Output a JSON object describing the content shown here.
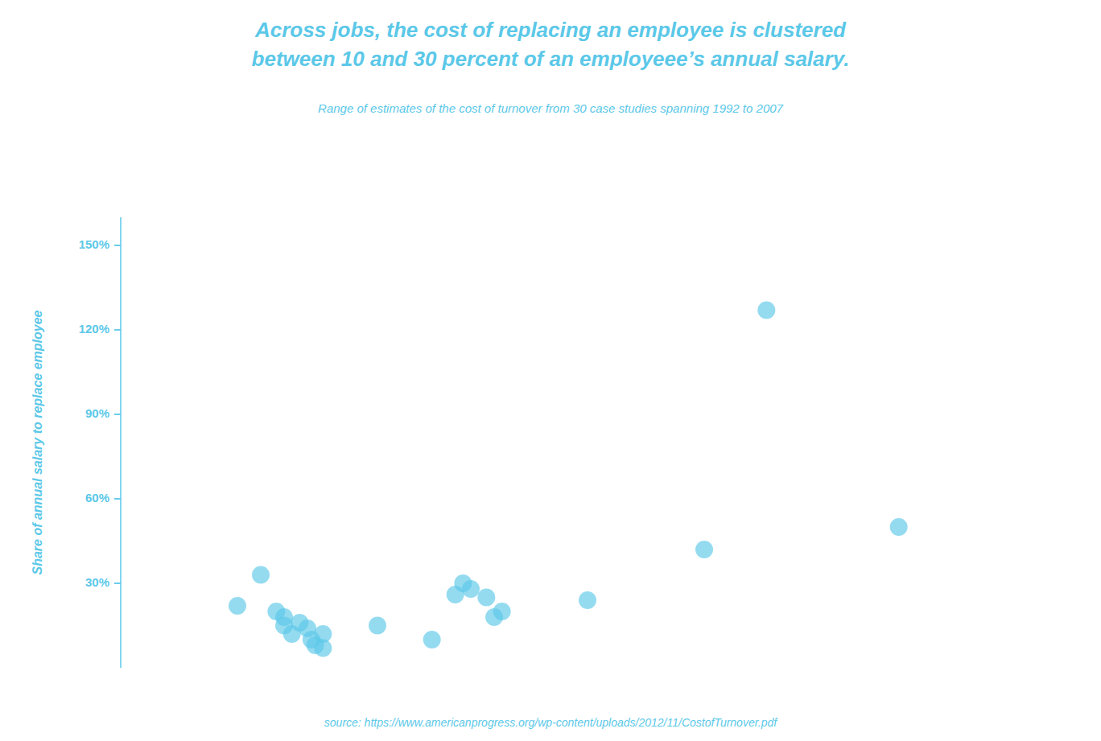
{
  "chart_data": {
    "type": "scatter",
    "title": [
      "Across jobs, the cost of replacing an employee is clustered",
      "between 10 and 30 percent of an employeee’s annual salary."
    ],
    "subtitle": "Range of estimates of the cost of turnover from 30 case studies spanning 1992 to 2007",
    "y_label": "Share of annual salary to replace employee",
    "annotations": [
      "source: https://www.americanprogress.org/wp-content/uploads/2012/11/CostofTurnover.pdf"
    ],
    "x": [
      3,
      3.3,
      3.5,
      3.6,
      3.6,
      3.7,
      3.8,
      3.9,
      3.95,
      4.0,
      4.1,
      4.1,
      4.8,
      5.5,
      5.8,
      5.9,
      6.0,
      6.2,
      6.3,
      6.4,
      7.5,
      9.0,
      9.8,
      11.5
    ],
    "values": [
      22,
      33,
      20,
      18,
      15,
      12,
      16,
      14,
      10,
      8,
      12,
      7,
      15,
      10,
      26,
      30,
      28,
      25,
      18,
      20,
      24,
      42,
      127,
      50
    ],
    "color": "#5bc8e8",
    "xlim": [
      1.5,
      13.5
    ],
    "ylim": [
      0,
      160
    ],
    "yticks": [
      {
        "value": 30,
        "label": "30%"
      },
      {
        "value": 60,
        "label": "60%"
      },
      {
        "value": 90,
        "label": "90%"
      },
      {
        "value": 120,
        "label": "120%"
      },
      {
        "value": 150,
        "label": "150%"
      }
    ],
    "grid": false,
    "tick_labels": "y"
  }
}
